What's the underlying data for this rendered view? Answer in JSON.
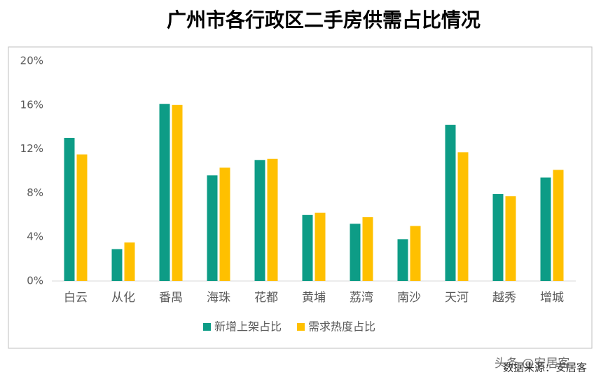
{
  "chart_data": {
    "type": "bar",
    "title": "广州市各行政区二手房供需占比情况",
    "categories": [
      "白云",
      "从化",
      "番禺",
      "海珠",
      "花都",
      "黄埔",
      "荔湾",
      "南沙",
      "天河",
      "越秀",
      "增城"
    ],
    "series": [
      {
        "name": "新增上架占比",
        "color": "#0d9c86",
        "values": [
          13.0,
          2.9,
          16.1,
          9.6,
          11.0,
          6.0,
          5.2,
          3.8,
          14.2,
          7.9,
          9.4
        ]
      },
      {
        "name": "需求热度占比",
        "color": "#ffc000",
        "values": [
          11.5,
          3.5,
          16.0,
          10.3,
          11.1,
          6.2,
          5.8,
          5.0,
          11.7,
          7.7,
          10.1
        ]
      }
    ],
    "ylim": [
      0,
      20
    ],
    "yticks": [
      {
        "value": 0,
        "label": "0%"
      },
      {
        "value": 4,
        "label": "4%"
      },
      {
        "value": 8,
        "label": "8%"
      },
      {
        "value": 12,
        "label": "12%"
      },
      {
        "value": 16,
        "label": "16%"
      },
      {
        "value": 20,
        "label": "20%"
      }
    ],
    "grid": false,
    "legend": "bottom",
    "source": "数据来源：安居客",
    "watermark": "头条 @安居客"
  }
}
